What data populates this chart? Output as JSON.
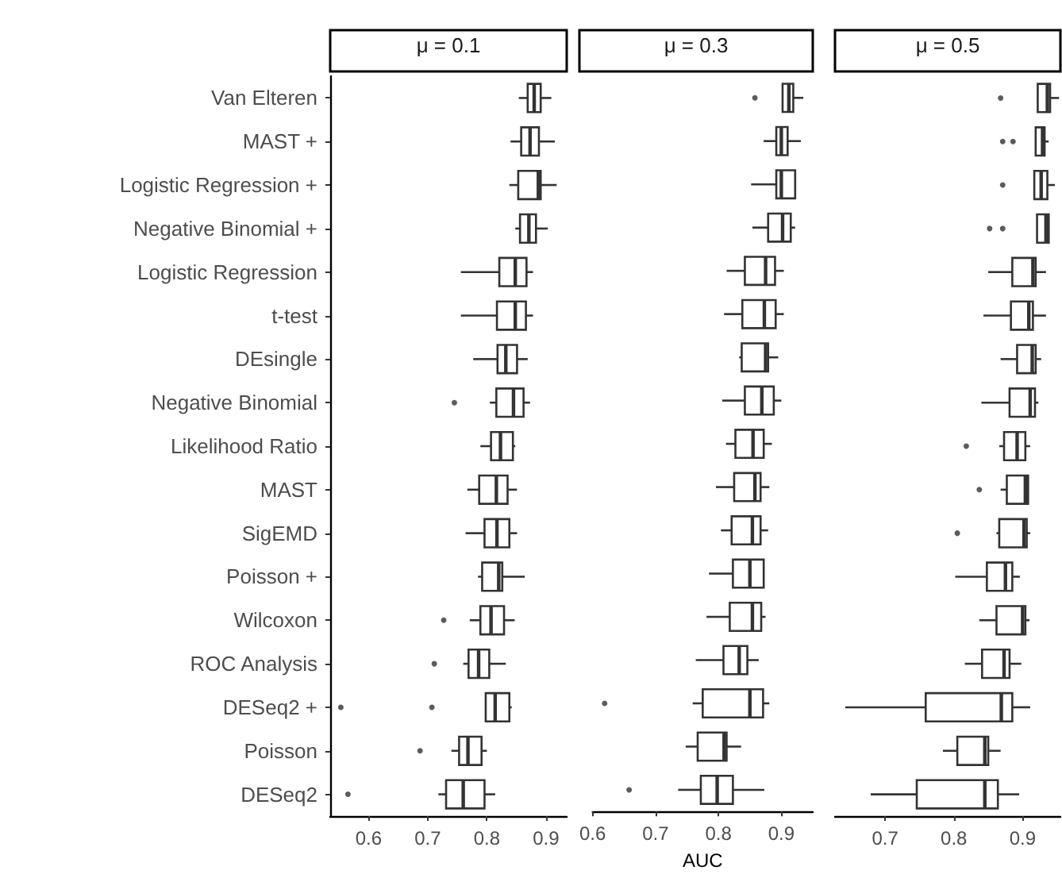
{
  "chart_data": [
    {
      "type": "box",
      "title": "μ = 0.1",
      "orientation": "horizontal",
      "color": "#333333",
      "xlim": [
        0.535,
        0.935
      ],
      "xticks": [
        0.6,
        0.7,
        0.8,
        0.9
      ],
      "categories": [
        "Van Elteren",
        "MAST +",
        "Logistic Regression +",
        "Negative Binomial +",
        "Logistic Regression",
        "t-test",
        "DEsingle",
        "Negative Binomial",
        "Likelihood Ratio",
        "MAST",
        "SigEMD",
        "Poisson +",
        "Wilcoxon",
        "ROC Analysis",
        "DESeq2 +",
        "Poisson",
        "DESeq2"
      ],
      "boxes": [
        {
          "low": 0.854,
          "q1": 0.869,
          "median": 0.88,
          "q3": 0.891,
          "high": 0.909
        },
        {
          "low": 0.84,
          "q1": 0.858,
          "median": 0.873,
          "q3": 0.888,
          "high": 0.915
        },
        {
          "low": 0.838,
          "q1": 0.853,
          "median": 0.887,
          "q3": 0.891,
          "high": 0.918
        },
        {
          "low": 0.848,
          "q1": 0.856,
          "median": 0.871,
          "q3": 0.883,
          "high": 0.903
        },
        {
          "low": 0.756,
          "q1": 0.821,
          "median": 0.848,
          "q3": 0.867,
          "high": 0.878
        },
        {
          "low": 0.756,
          "q1": 0.817,
          "median": 0.848,
          "q3": 0.866,
          "high": 0.878
        },
        {
          "low": 0.777,
          "q1": 0.818,
          "median": 0.832,
          "q3": 0.851,
          "high": 0.869
        },
        {
          "low": 0.805,
          "q1": 0.816,
          "median": 0.845,
          "q3": 0.862,
          "high": 0.873,
          "outliers": [
            0.745
          ]
        },
        {
          "low": 0.789,
          "q1": 0.807,
          "median": 0.823,
          "q3": 0.844,
          "high": 0.848
        },
        {
          "low": 0.767,
          "q1": 0.787,
          "median": 0.816,
          "q3": 0.835,
          "high": 0.851
        },
        {
          "low": 0.764,
          "q1": 0.796,
          "median": 0.817,
          "q3": 0.838,
          "high": 0.851
        },
        {
          "low": 0.785,
          "q1": 0.792,
          "median": 0.82,
          "q3": 0.826,
          "high": 0.864
        },
        {
          "low": 0.771,
          "q1": 0.789,
          "median": 0.807,
          "q3": 0.829,
          "high": 0.847,
          "outliers": [
            0.727
          ]
        },
        {
          "low": 0.76,
          "q1": 0.769,
          "median": 0.786,
          "q3": 0.804,
          "high": 0.832,
          "outliers": [
            0.711
          ]
        },
        {
          "low": 0.798,
          "q1": 0.798,
          "median": 0.814,
          "q3": 0.838,
          "high": 0.842,
          "outliers": [
            0.553,
            0.707
          ]
        },
        {
          "low": 0.74,
          "q1": 0.753,
          "median": 0.768,
          "q3": 0.791,
          "high": 0.8,
          "outliers": [
            0.687
          ]
        },
        {
          "low": 0.718,
          "q1": 0.731,
          "median": 0.76,
          "q3": 0.796,
          "high": 0.814,
          "outliers": [
            0.565
          ]
        }
      ]
    },
    {
      "type": "box",
      "title": "μ = 0.3",
      "xlabel": "AUC",
      "orientation": "horizontal",
      "color": "#333333",
      "tick_labels": "x",
      "xlim": [
        0.6,
        0.95
      ],
      "xticks": [
        0.6,
        0.7,
        0.8,
        0.9
      ],
      "categories": [
        null,
        null,
        null,
        null,
        null,
        null,
        null,
        null,
        null,
        null,
        null,
        null,
        null,
        null,
        null,
        null,
        null
      ],
      "boxes": [
        {
          "low": 0.902,
          "q1": 0.902,
          "median": 0.912,
          "q3": 0.919,
          "high": 0.935,
          "outliers": [
            0.858
          ]
        },
        {
          "low": 0.872,
          "q1": 0.892,
          "median": 0.9,
          "q3": 0.91,
          "high": 0.931
        },
        {
          "low": 0.852,
          "q1": 0.892,
          "median": 0.9,
          "q3": 0.922,
          "high": 0.922
        },
        {
          "low": 0.854,
          "q1": 0.879,
          "median": 0.902,
          "q3": 0.915,
          "high": 0.922
        },
        {
          "low": 0.813,
          "q1": 0.842,
          "median": 0.875,
          "q3": 0.89,
          "high": 0.904
        },
        {
          "low": 0.809,
          "q1": 0.838,
          "median": 0.873,
          "q3": 0.891,
          "high": 0.904
        },
        {
          "low": 0.833,
          "q1": 0.837,
          "median": 0.875,
          "q3": 0.879,
          "high": 0.895
        },
        {
          "low": 0.806,
          "q1": 0.842,
          "median": 0.869,
          "q3": 0.888,
          "high": 0.9
        },
        {
          "low": 0.812,
          "q1": 0.827,
          "median": 0.855,
          "q3": 0.872,
          "high": 0.885
        },
        {
          "low": 0.796,
          "q1": 0.825,
          "median": 0.858,
          "q3": 0.867,
          "high": 0.881
        },
        {
          "low": 0.804,
          "q1": 0.821,
          "median": 0.854,
          "q3": 0.867,
          "high": 0.879
        },
        {
          "low": 0.785,
          "q1": 0.823,
          "median": 0.85,
          "q3": 0.872,
          "high": 0.872
        },
        {
          "low": 0.781,
          "q1": 0.818,
          "median": 0.854,
          "q3": 0.868,
          "high": 0.875
        },
        {
          "low": 0.764,
          "q1": 0.808,
          "median": 0.833,
          "q3": 0.846,
          "high": 0.864
        },
        {
          "low": 0.759,
          "q1": 0.775,
          "median": 0.85,
          "q3": 0.871,
          "high": 0.881,
          "outliers": [
            0.619
          ]
        },
        {
          "low": 0.748,
          "q1": 0.767,
          "median": 0.809,
          "q3": 0.813,
          "high": 0.836
        },
        {
          "low": 0.736,
          "q1": 0.772,
          "median": 0.798,
          "q3": 0.823,
          "high": 0.873,
          "outliers": [
            0.658
          ]
        }
      ]
    },
    {
      "type": "box",
      "title": "μ = 0.5",
      "orientation": "horizontal",
      "color": "#333333",
      "tick_labels": "x",
      "xlim": [
        0.627,
        0.955
      ],
      "xticks": [
        0.7,
        0.8,
        0.9
      ],
      "categories": [
        null,
        null,
        null,
        null,
        null,
        null,
        null,
        null,
        null,
        null,
        null,
        null,
        null,
        null,
        null,
        null,
        null
      ],
      "boxes": [
        {
          "low": 0.921,
          "q1": 0.922,
          "median": 0.936,
          "q3": 0.94,
          "high": 0.953,
          "outliers": [
            0.868
          ]
        },
        {
          "low": 0.919,
          "q1": 0.919,
          "median": 0.929,
          "q3": 0.932,
          "high": 0.938,
          "outliers": [
            0.871,
            0.886
          ]
        },
        {
          "low": 0.917,
          "q1": 0.917,
          "median": 0.927,
          "q3": 0.936,
          "high": 0.947,
          "outliers": [
            0.871
          ]
        },
        {
          "low": 0.921,
          "q1": 0.921,
          "median": 0.934,
          "q3": 0.938,
          "high": 0.938,
          "outliers": [
            0.852,
            0.871
          ]
        },
        {
          "low": 0.85,
          "q1": 0.885,
          "median": 0.915,
          "q3": 0.919,
          "high": 0.934
        },
        {
          "low": 0.843,
          "q1": 0.883,
          "median": 0.909,
          "q3": 0.915,
          "high": 0.934
        },
        {
          "low": 0.868,
          "q1": 0.892,
          "median": 0.914,
          "q3": 0.919,
          "high": 0.927
        },
        {
          "low": 0.84,
          "q1": 0.881,
          "median": 0.911,
          "q3": 0.918,
          "high": 0.923
        },
        {
          "low": 0.866,
          "q1": 0.873,
          "median": 0.892,
          "q3": 0.904,
          "high": 0.911,
          "outliers": [
            0.818
          ]
        },
        {
          "low": 0.868,
          "q1": 0.877,
          "median": 0.904,
          "q3": 0.908,
          "high": 0.908,
          "outliers": [
            0.837
          ]
        },
        {
          "low": 0.862,
          "q1": 0.866,
          "median": 0.902,
          "q3": 0.906,
          "high": 0.911,
          "outliers": [
            0.805
          ]
        },
        {
          "low": 0.802,
          "q1": 0.848,
          "median": 0.875,
          "q3": 0.885,
          "high": 0.896
        },
        {
          "low": 0.837,
          "q1": 0.862,
          "median": 0.9,
          "q3": 0.904,
          "high": 0.91
        },
        {
          "low": 0.816,
          "q1": 0.841,
          "median": 0.873,
          "q3": 0.881,
          "high": 0.898
        },
        {
          "low": 0.642,
          "q1": 0.759,
          "median": 0.869,
          "q3": 0.885,
          "high": 0.911
        },
        {
          "low": 0.784,
          "q1": 0.805,
          "median": 0.845,
          "q3": 0.85,
          "high": 0.868
        },
        {
          "low": 0.679,
          "q1": 0.746,
          "median": 0.845,
          "q3": 0.864,
          "high": 0.895
        }
      ]
    }
  ]
}
